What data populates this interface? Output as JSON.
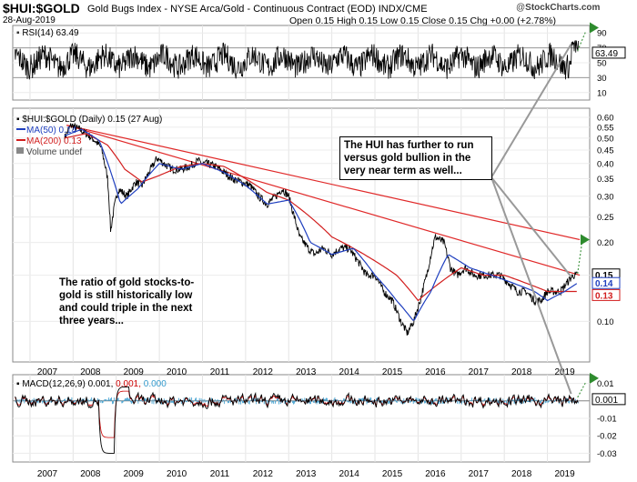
{
  "header": {
    "symbol": "$HUI:$GOLD",
    "name": "Gold Bugs Index - NYSE Arca/Gold - Continuous Contract (EOD) INDX/CME",
    "date": "28-Aug-2019",
    "ohlc": "Open 0.15  High 0.15  Low 0.15  Close 0.15  Chg +0.00 (+2.78%)",
    "brand_prefix": "@",
    "brand": "StockCharts.com"
  },
  "legend": {
    "rsi": "RSI(14) 63.49",
    "main": "$HUI:$GOLD (Daily) 0.15 (27 Aug)",
    "ma50": "MA(50) 0.14",
    "ma200": "MA(200) 0.13",
    "volume": "Volume undef",
    "macd_label": "MACD(12,26,9)",
    "macd_v1": "0.001,",
    "macd_v2": "0.001,",
    "macd_v3": "0.000"
  },
  "annotations": {
    "top": "The HUI has further to run versus gold bullion in the very near term as well...",
    "left": "The ratio of gold stocks-to-gold is still historically low and could triple in the next three years..."
  },
  "colors": {
    "price": "#000000",
    "ma50": "#1f3fbf",
    "ma200": "#d21e1e",
    "trendline": "#e02828",
    "macd_signal": "#cc0000",
    "macd_hist": "#3399cc",
    "label_blue": "#0000aa"
  },
  "chart_data": [
    {
      "type": "line",
      "title": "RSI(14)",
      "ylim": [
        0,
        100
      ],
      "yticks": [
        "90",
        "70",
        "50",
        "30",
        "10"
      ],
      "value_tag": "63.49",
      "reference_lines": [
        70,
        30
      ],
      "grid": true
    },
    {
      "type": "line",
      "title": "$HUI:$GOLD (Daily)",
      "scale": "log",
      "ylim": [
        0.07,
        0.65
      ],
      "yticks": [
        "0.60",
        "0.55",
        "0.50",
        "0.45",
        "0.40",
        "0.35",
        "0.30",
        "0.25",
        "0.20",
        "0.15",
        "0.10"
      ],
      "x_labels": [
        "2007",
        "2008",
        "2009",
        "2010",
        "2011",
        "2012",
        "2013",
        "2014",
        "2015",
        "2016",
        "2017",
        "2018",
        "2019"
      ],
      "value_tags": {
        "close": "0.15",
        "ma50": "0.14",
        "ma200": "0.13"
      },
      "series": [
        {
          "name": "$HUI:$GOLD (Daily)",
          "x": [
            2007.8,
            2007.95,
            2008.15,
            2008.3,
            2008.5,
            2008.65,
            2008.8,
            2008.87,
            2008.95,
            2009.05,
            2009.25,
            2009.45,
            2009.6,
            2009.8,
            2009.95,
            2010.1,
            2010.3,
            2010.5,
            2010.7,
            2010.9,
            2011.0,
            2011.1,
            2011.3,
            2011.5,
            2011.7,
            2011.9,
            2012.1,
            2012.3,
            2012.5,
            2012.7,
            2012.85,
            2013.0,
            2013.1,
            2013.25,
            2013.45,
            2013.6,
            2013.8,
            2014.0,
            2014.2,
            2014.4,
            2014.6,
            2014.8,
            2015.0,
            2015.2,
            2015.4,
            2015.6,
            2015.75,
            2015.9,
            2016.05,
            2016.2,
            2016.4,
            2016.6,
            2016.75,
            2016.9,
            2017.1,
            2017.3,
            2017.5,
            2017.7,
            2017.9,
            2018.1,
            2018.3,
            2018.5,
            2018.7,
            2018.85,
            2019.0,
            2019.15,
            2019.3,
            2019.45,
            2019.6,
            2019.7
          ],
          "values": [
            0.5,
            0.56,
            0.54,
            0.52,
            0.49,
            0.46,
            0.35,
            0.22,
            0.27,
            0.32,
            0.3,
            0.34,
            0.33,
            0.38,
            0.42,
            0.4,
            0.38,
            0.38,
            0.39,
            0.41,
            0.4,
            0.4,
            0.39,
            0.37,
            0.35,
            0.34,
            0.33,
            0.3,
            0.28,
            0.3,
            0.32,
            0.3,
            0.26,
            0.21,
            0.19,
            0.18,
            0.19,
            0.18,
            0.19,
            0.19,
            0.17,
            0.15,
            0.15,
            0.13,
            0.12,
            0.1,
            0.09,
            0.1,
            0.12,
            0.15,
            0.21,
            0.2,
            0.16,
            0.15,
            0.16,
            0.15,
            0.15,
            0.15,
            0.15,
            0.14,
            0.13,
            0.13,
            0.12,
            0.12,
            0.13,
            0.13,
            0.13,
            0.14,
            0.15,
            0.15
          ]
        },
        {
          "name": "MA(50)",
          "x": [
            2007.8,
            2008.2,
            2008.6,
            2008.9,
            2009.1,
            2009.5,
            2010.0,
            2010.5,
            2011.0,
            2011.5,
            2012.0,
            2012.5,
            2013.0,
            2013.5,
            2014.0,
            2014.5,
            2015.0,
            2015.5,
            2015.9,
            2016.3,
            2016.7,
            2017.2,
            2017.7,
            2018.2,
            2018.7,
            2019.0,
            2019.4,
            2019.7
          ],
          "values": [
            0.51,
            0.54,
            0.49,
            0.36,
            0.28,
            0.32,
            0.4,
            0.38,
            0.4,
            0.37,
            0.33,
            0.28,
            0.29,
            0.2,
            0.18,
            0.19,
            0.15,
            0.12,
            0.1,
            0.13,
            0.18,
            0.16,
            0.15,
            0.14,
            0.13,
            0.12,
            0.13,
            0.14
          ]
        },
        {
          "name": "MA(200)",
          "x": [
            2007.8,
            2008.3,
            2008.8,
            2009.2,
            2009.6,
            2010.0,
            2010.5,
            2011.0,
            2011.5,
            2012.0,
            2012.5,
            2013.0,
            2013.5,
            2014.0,
            2014.5,
            2015.0,
            2015.5,
            2016.0,
            2016.5,
            2017.0,
            2017.5,
            2018.0,
            2018.5,
            2019.0,
            2019.4,
            2019.7
          ],
          "values": [
            0.5,
            0.52,
            0.47,
            0.38,
            0.34,
            0.36,
            0.39,
            0.4,
            0.39,
            0.35,
            0.31,
            0.29,
            0.25,
            0.21,
            0.19,
            0.17,
            0.15,
            0.12,
            0.14,
            0.16,
            0.15,
            0.15,
            0.14,
            0.13,
            0.13,
            0.13
          ]
        }
      ],
      "trendlines": [
        {
          "x": [
            2007.85,
            2019.75
          ],
          "values": [
            0.56,
            0.205
          ]
        },
        {
          "x": [
            2007.85,
            2019.75
          ],
          "values": [
            0.56,
            0.15
          ]
        }
      ]
    },
    {
      "type": "line",
      "title": "MACD(12,26,9)",
      "ylim": [
        -0.035,
        0.015
      ],
      "yticks": [
        "0.01",
        "0.00",
        "-0.01",
        "-0.02",
        "-0.03"
      ],
      "value_tag": "0.001",
      "x_labels": [
        "2007",
        "2008",
        "2009",
        "2010",
        "2011",
        "2012",
        "2013",
        "2014",
        "2015",
        "2016",
        "2017",
        "2018",
        "2019"
      ],
      "grid": true
    }
  ]
}
